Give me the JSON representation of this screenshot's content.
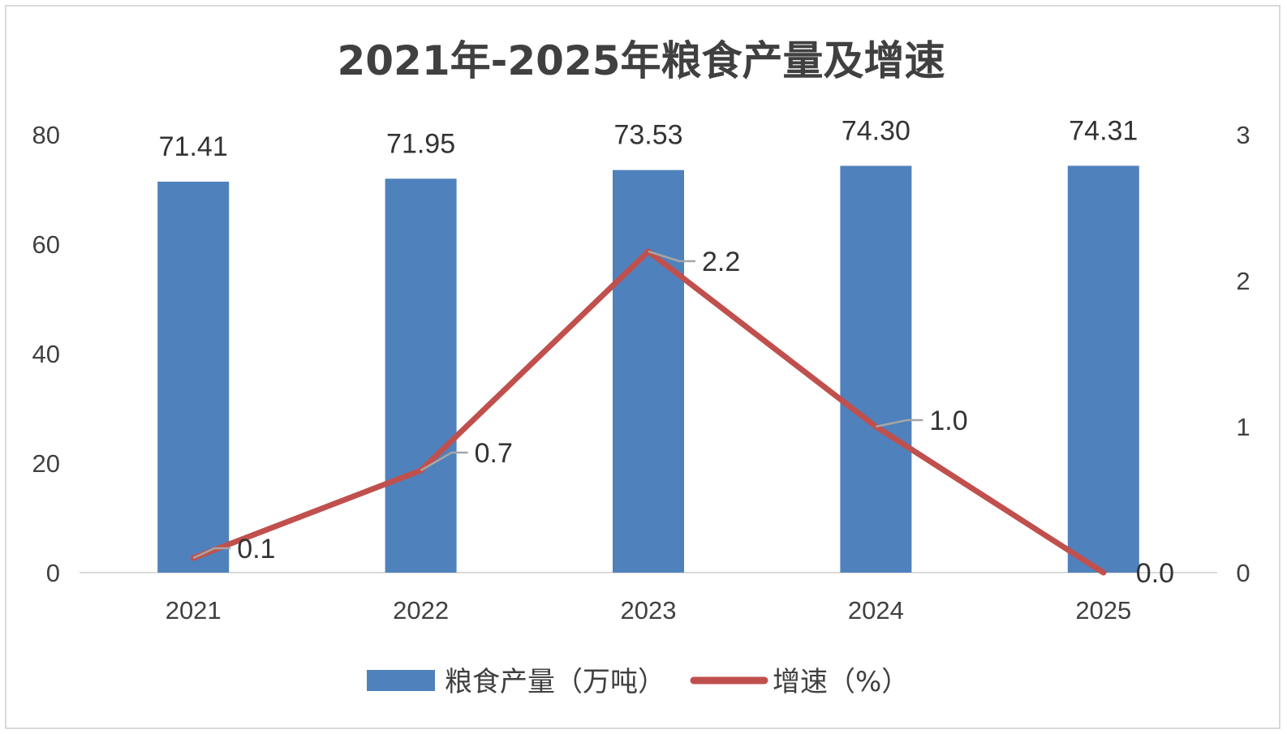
{
  "chart_data": {
    "type": "bar",
    "title": "2021年-2025年粮食产量及增速",
    "categories": [
      "2021",
      "2022",
      "2023",
      "2024",
      "2025"
    ],
    "series": [
      {
        "name": "粮食产量（万吨）",
        "type": "bar",
        "axis": "left",
        "color": "#4f81bd",
        "values": [
          71.41,
          71.95,
          73.53,
          74.3,
          74.31
        ],
        "labels": [
          "71.41",
          "71.95",
          "73.53",
          "74.30",
          "74.31"
        ]
      },
      {
        "name": "增速（%）",
        "type": "line",
        "axis": "right",
        "color": "#c0504d",
        "values": [
          0.1,
          0.7,
          2.2,
          1.0,
          0.0
        ],
        "labels": [
          "0.1",
          "0.7",
          "2.2",
          "1.0",
          "0.0"
        ]
      }
    ],
    "y_left": {
      "min": 0,
      "max": 80,
      "ticks": [
        "0",
        "20",
        "40",
        "60",
        "80"
      ]
    },
    "y_right": {
      "min": 0,
      "max": 3,
      "ticks": [
        "0",
        "1",
        "2",
        "3"
      ]
    },
    "grid": false,
    "legend_position": "bottom"
  }
}
